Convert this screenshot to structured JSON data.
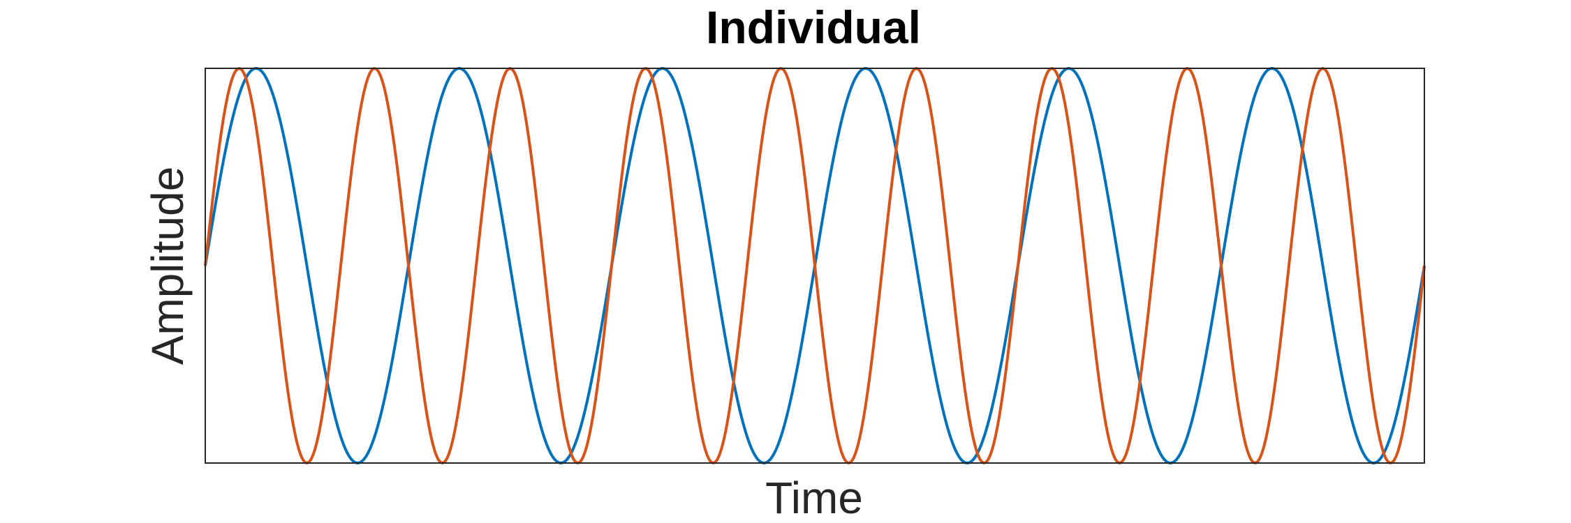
{
  "chart_data": {
    "type": "line",
    "title": "Individual",
    "xlabel": "Time",
    "ylabel": "Amplitude",
    "xlim": [
      0,
      6
    ],
    "ylim": [
      -1,
      1
    ],
    "xticks": [],
    "yticks": [],
    "grid": false,
    "legend": "none",
    "series": [
      {
        "color": "#0072BD",
        "equation": "sin(2*pi*x)",
        "frequency": 1,
        "amplitude": 1,
        "phase": 0,
        "sample_count": 601
      },
      {
        "color": "#D95319",
        "equation": "sin(2*pi*1.5*x)",
        "frequency": 1.5,
        "amplitude": 1,
        "phase": 0,
        "sample_count": 601
      }
    ]
  }
}
